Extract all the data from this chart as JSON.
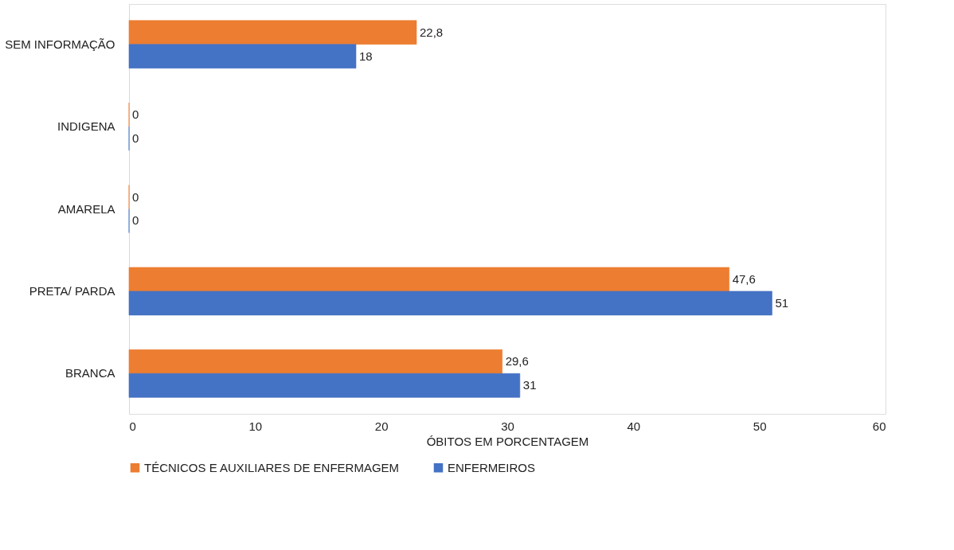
{
  "chart_data": {
    "type": "bar",
    "orientation": "horizontal",
    "categories": [
      "SEM INFORMAÇÃO",
      "INDIGENA",
      "AMARELA",
      "PRETA/ PARDA",
      "BRANCA"
    ],
    "series": [
      {
        "name": "TÉCNICOS E AUXILIARES DE ENFERMAGEM",
        "color": "#ed7d31",
        "values": [
          22.8,
          0,
          0,
          47.6,
          29.6
        ],
        "value_labels": [
          "22,8",
          "0",
          "0",
          "47,6",
          "29,6"
        ]
      },
      {
        "name": "ENFERMEIROS",
        "color": "#4472c4",
        "values": [
          18,
          0,
          0,
          51,
          31
        ],
        "value_labels": [
          "18",
          "0",
          "0",
          "51",
          "31"
        ]
      }
    ],
    "xlabel": "ÓBITOS EM PORCENTAGEM",
    "xlim": [
      0,
      60
    ],
    "xticks": [
      0,
      10,
      20,
      30,
      40,
      50,
      60
    ],
    "grid": false,
    "legend": "bottom"
  }
}
